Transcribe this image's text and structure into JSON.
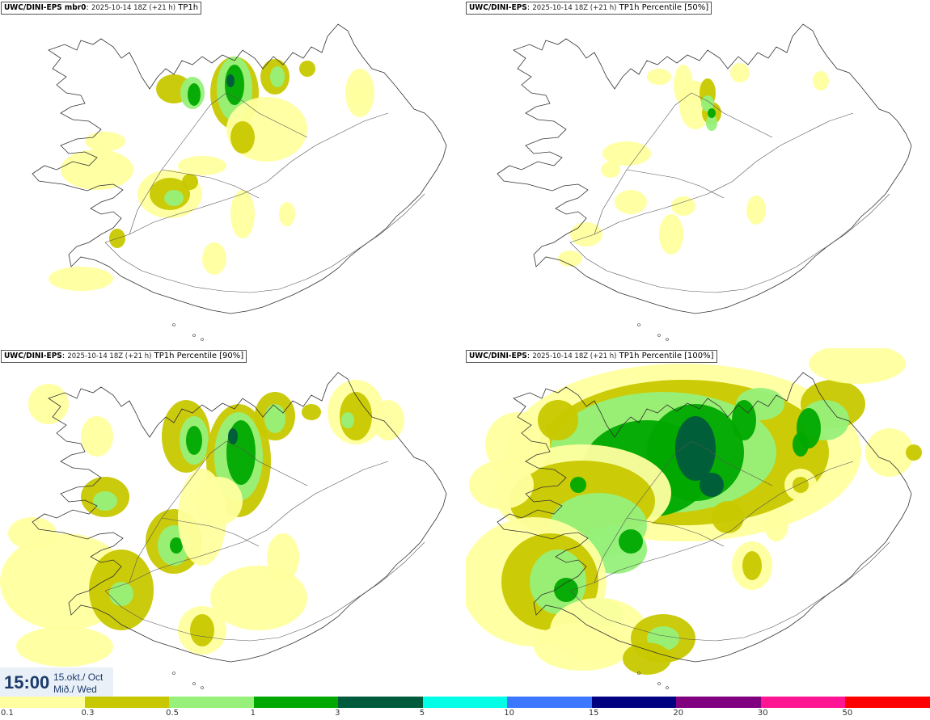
{
  "panels": [
    {
      "model": "UWC/DINI-EPS mbr0",
      "run": "2025-10-14 18Z (+21 h)",
      "variable": "TP1h",
      "intensity": "low"
    },
    {
      "model": "UWC/DINI-EPS",
      "run": "2025-10-14 18Z (+21 h)",
      "variable": "TP1h Percentile [50%]",
      "intensity": "lowest"
    },
    {
      "model": "UWC/DINI-EPS",
      "run": "2025-10-14 18Z (+21 h)",
      "variable": "TP1h Percentile [90%]",
      "intensity": "medium"
    },
    {
      "model": "UWC/DINI-EPS",
      "run": "2025-10-14 18Z (+21 h)",
      "variable": "TP1h Percentile [100%]",
      "intensity": "high"
    }
  ],
  "valid_time": {
    "time": "15:00",
    "date": "15.okt./ Oct",
    "weekday": "Mið./ Wed"
  },
  "legend": {
    "thresholds": [
      "0.1",
      "0.3",
      "0.5",
      "1",
      "3",
      "5",
      "10",
      "15",
      "20",
      "30",
      "50"
    ],
    "colors": [
      "#ffff9f",
      "#c8c800",
      "#96f07a",
      "#00a800",
      "#005a3c",
      "#00ffe6",
      "#3c78ff",
      "#000080",
      "#800080",
      "#ff1493",
      "#ff0000"
    ]
  }
}
